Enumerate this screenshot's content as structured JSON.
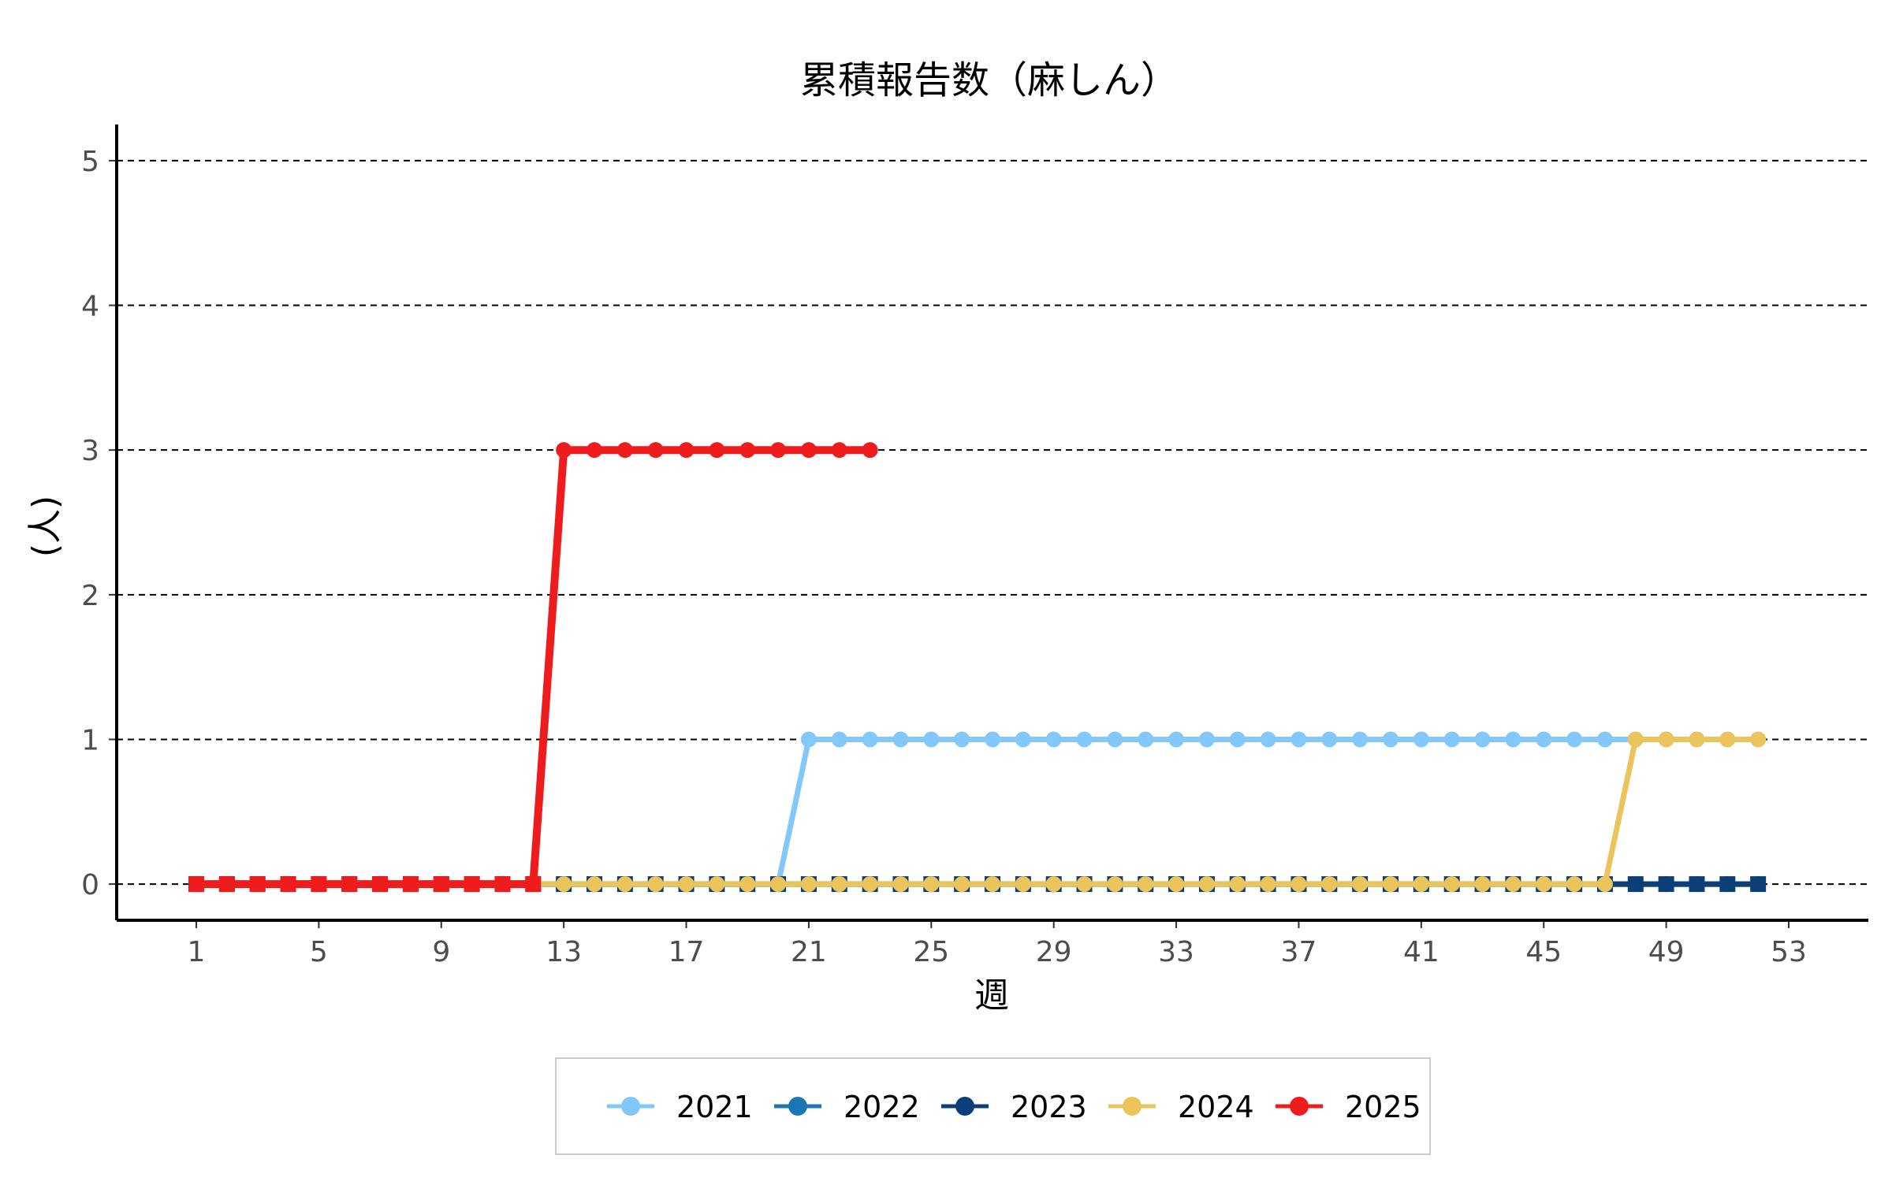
{
  "chart_data": {
    "type": "line",
    "title": "累積報告数（麻しん）",
    "xlabel": "週",
    "ylabel": "(人)",
    "xlim": [
      -1.6,
      55.6
    ],
    "ylim": [
      -0.25,
      5.25
    ],
    "xticks": [
      1,
      5,
      9,
      13,
      17,
      21,
      25,
      29,
      33,
      37,
      41,
      45,
      49,
      53
    ],
    "yticks": [
      0,
      1,
      2,
      3,
      4,
      5
    ],
    "grid": "horizontal-dashed",
    "legend_position": "bottom",
    "series": [
      {
        "name": "2021",
        "color": "#82C8FA",
        "x": [
          1,
          2,
          3,
          4,
          5,
          6,
          7,
          8,
          9,
          10,
          11,
          12,
          13,
          14,
          15,
          16,
          17,
          18,
          19,
          20,
          21,
          22,
          23,
          24,
          25,
          26,
          27,
          28,
          29,
          30,
          31,
          32,
          33,
          34,
          35,
          36,
          37,
          38,
          39,
          40,
          41,
          42,
          43,
          44,
          45,
          46,
          47,
          48,
          49,
          50,
          51,
          52
        ],
        "y": [
          0,
          0,
          0,
          0,
          0,
          0,
          0,
          0,
          0,
          0,
          0,
          0,
          0,
          0,
          0,
          0,
          0,
          0,
          0,
          0,
          1,
          1,
          1,
          1,
          1,
          1,
          1,
          1,
          1,
          1,
          1,
          1,
          1,
          1,
          1,
          1,
          1,
          1,
          1,
          1,
          1,
          1,
          1,
          1,
          1,
          1,
          1,
          1,
          1,
          1,
          1,
          1
        ]
      },
      {
        "name": "2022",
        "color": "#1A77B4",
        "x": [
          1,
          2,
          3,
          4,
          5,
          6,
          7,
          8,
          9,
          10,
          11,
          12,
          13,
          14,
          15,
          16,
          17,
          18,
          19,
          20,
          21,
          22,
          23,
          24,
          25,
          26,
          27,
          28,
          29,
          30,
          31,
          32,
          33,
          34,
          35,
          36,
          37,
          38,
          39,
          40,
          41,
          42,
          43,
          44,
          45,
          46,
          47,
          48,
          49,
          50,
          51,
          52
        ],
        "y": [
          0,
          0,
          0,
          0,
          0,
          0,
          0,
          0,
          0,
          0,
          0,
          0,
          0,
          0,
          0,
          0,
          0,
          0,
          0,
          0,
          0,
          0,
          0,
          0,
          0,
          0,
          0,
          0,
          0,
          0,
          0,
          0,
          0,
          0,
          0,
          0,
          0,
          0,
          0,
          0,
          0,
          0,
          0,
          0,
          0,
          0,
          0,
          0,
          0,
          0,
          0,
          0
        ]
      },
      {
        "name": "2023",
        "color": "#0C3F78",
        "x": [
          1,
          2,
          3,
          4,
          5,
          6,
          7,
          8,
          9,
          10,
          11,
          12,
          13,
          14,
          15,
          16,
          17,
          18,
          19,
          20,
          21,
          22,
          23,
          24,
          25,
          26,
          27,
          28,
          29,
          30,
          31,
          32,
          33,
          34,
          35,
          36,
          37,
          38,
          39,
          40,
          41,
          42,
          43,
          44,
          45,
          46,
          47,
          48,
          49,
          50,
          51,
          52
        ],
        "y": [
          0,
          0,
          0,
          0,
          0,
          0,
          0,
          0,
          0,
          0,
          0,
          0,
          0,
          0,
          0,
          0,
          0,
          0,
          0,
          0,
          0,
          0,
          0,
          0,
          0,
          0,
          0,
          0,
          0,
          0,
          0,
          0,
          0,
          0,
          0,
          0,
          0,
          0,
          0,
          0,
          0,
          0,
          0,
          0,
          0,
          0,
          0,
          0,
          0,
          0,
          0,
          0
        ]
      },
      {
        "name": "2024",
        "color": "#EBC45C",
        "x": [
          1,
          2,
          3,
          4,
          5,
          6,
          7,
          8,
          9,
          10,
          11,
          12,
          13,
          14,
          15,
          16,
          17,
          18,
          19,
          20,
          21,
          22,
          23,
          24,
          25,
          26,
          27,
          28,
          29,
          30,
          31,
          32,
          33,
          34,
          35,
          36,
          37,
          38,
          39,
          40,
          41,
          42,
          43,
          44,
          45,
          46,
          47,
          48,
          49,
          50,
          51,
          52
        ],
        "y": [
          0,
          0,
          0,
          0,
          0,
          0,
          0,
          0,
          0,
          0,
          0,
          0,
          0,
          0,
          0,
          0,
          0,
          0,
          0,
          0,
          0,
          0,
          0,
          0,
          0,
          0,
          0,
          0,
          0,
          0,
          0,
          0,
          0,
          0,
          0,
          0,
          0,
          0,
          0,
          0,
          0,
          0,
          0,
          0,
          0,
          0,
          0,
          1,
          1,
          1,
          1,
          1
        ]
      },
      {
        "name": "2025",
        "color": "#EE1C1C",
        "x": [
          1,
          2,
          3,
          4,
          5,
          6,
          7,
          8,
          9,
          10,
          11,
          12,
          13,
          14,
          15,
          16,
          17,
          18,
          19,
          20,
          21,
          22,
          23
        ],
        "y": [
          0,
          0,
          0,
          0,
          0,
          0,
          0,
          0,
          0,
          0,
          0,
          0,
          3,
          3,
          3,
          3,
          3,
          3,
          3,
          3,
          3,
          3,
          3
        ]
      }
    ]
  }
}
